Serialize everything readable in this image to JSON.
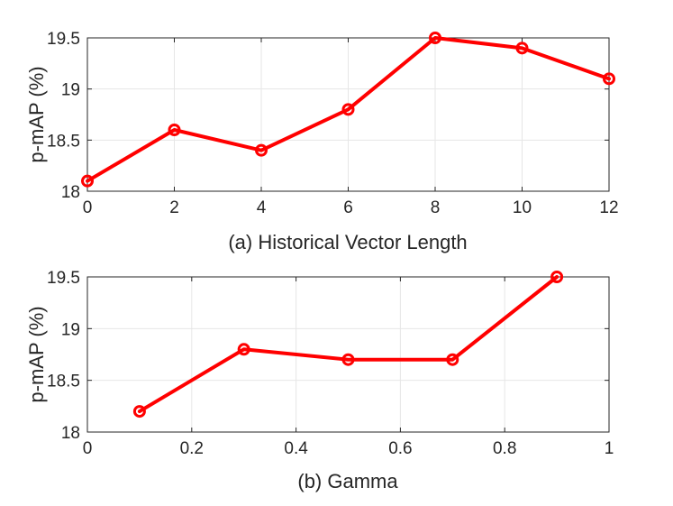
{
  "chart_data": [
    {
      "type": "line",
      "title": "",
      "xlabel": "(a) Historical Vector Length",
      "ylabel": "p-mAP (%)",
      "xlim": [
        0,
        12
      ],
      "ylim": [
        18,
        19.5
      ],
      "xticks": [
        0,
        2,
        4,
        6,
        8,
        10,
        12
      ],
      "xtick_labels": [
        "0",
        "2",
        "4",
        "6",
        "8",
        "10",
        "12"
      ],
      "yticks": [
        18,
        18.5,
        19,
        19.5
      ],
      "ytick_labels": [
        "18",
        "18.5",
        "19",
        "19.5"
      ],
      "grid": true,
      "legend": "none",
      "series": [
        {
          "color": "#ff0000",
          "marker": "circle",
          "x": [
            0,
            2,
            4,
            6,
            8,
            10,
            12
          ],
          "y": [
            18.1,
            18.6,
            18.4,
            18.8,
            19.5,
            19.4,
            19.1
          ]
        }
      ]
    },
    {
      "type": "line",
      "title": "",
      "xlabel": "(b) Gamma",
      "ylabel": "p-mAP (%)",
      "xlim": [
        0,
        1
      ],
      "ylim": [
        18,
        19.5
      ],
      "xticks": [
        0,
        0.2,
        0.4,
        0.6,
        0.8,
        1
      ],
      "xtick_labels": [
        "0",
        "0.2",
        "0.4",
        "0.6",
        "0.8",
        "1"
      ],
      "yticks": [
        18,
        18.5,
        19,
        19.5
      ],
      "ytick_labels": [
        "18",
        "18.5",
        "19",
        "19.5"
      ],
      "grid": true,
      "legend": "none",
      "series": [
        {
          "color": "#ff0000",
          "marker": "circle",
          "x": [
            0.1,
            0.3,
            0.5,
            0.7,
            0.9
          ],
          "y": [
            18.2,
            18.8,
            18.7,
            18.7,
            19.5
          ]
        }
      ]
    }
  ]
}
